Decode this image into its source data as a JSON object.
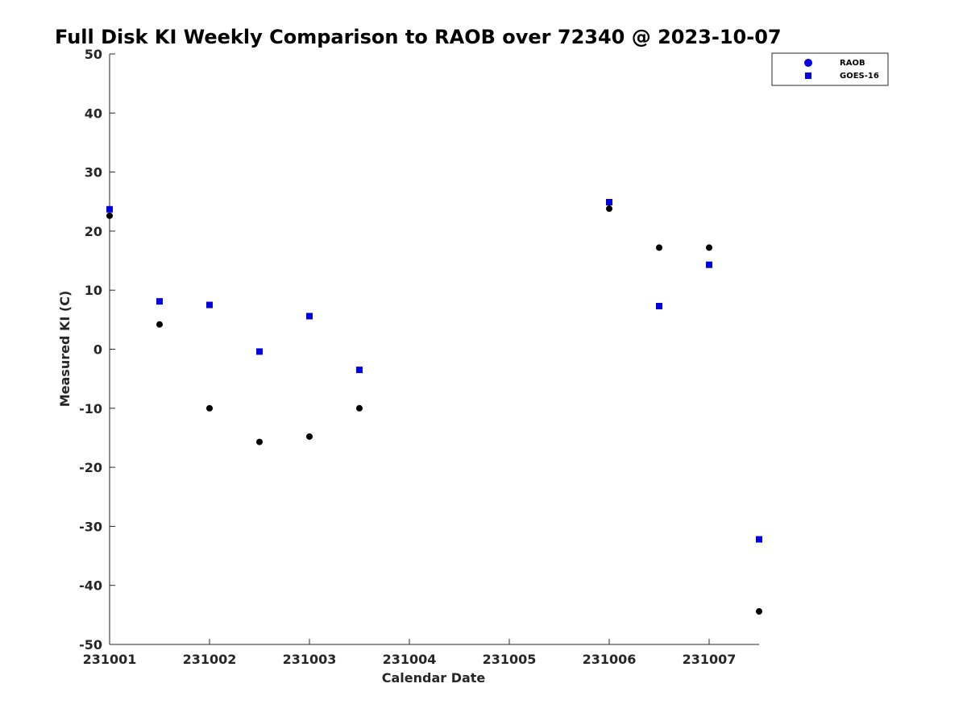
{
  "chart_data": {
    "type": "scatter",
    "title": "Full Disk KI Weekly Comparison to RAOB over 72340 @ 2023-10-07",
    "xlabel": "Calendar Date",
    "ylabel": "Measured KI (C)",
    "x_ticks": [
      "231001",
      "231002",
      "231003",
      "231004",
      "231005",
      "231006",
      "231007"
    ],
    "xlim": [
      "2023-10-01 00:00",
      "2023-10-07 12:00"
    ],
    "ylim": [
      -50,
      50
    ],
    "y_ticks": [
      -50,
      -40,
      -30,
      -20,
      -10,
      0,
      10,
      20,
      30,
      40,
      50
    ],
    "grid": false,
    "legend_position": "top-right",
    "series": [
      {
        "name": "RAOB",
        "marker": "circle",
        "color": "#000000",
        "points": [
          {
            "x": "2023-10-01 00:00",
            "y": 22.6
          },
          {
            "x": "2023-10-01 12:00",
            "y": 4.2
          },
          {
            "x": "2023-10-02 00:00",
            "y": -10.0
          },
          {
            "x": "2023-10-02 12:00",
            "y": -15.7
          },
          {
            "x": "2023-10-03 00:00",
            "y": -14.8
          },
          {
            "x": "2023-10-03 12:00",
            "y": -10.0
          },
          {
            "x": "2023-10-06 00:00",
            "y": 23.8
          },
          {
            "x": "2023-10-06 12:00",
            "y": 17.2
          },
          {
            "x": "2023-10-07 00:00",
            "y": 17.2
          },
          {
            "x": "2023-10-07 12:00",
            "y": -44.4
          }
        ]
      },
      {
        "name": "GOES-16",
        "marker": "square",
        "color": "#0000e0",
        "points": [
          {
            "x": "2023-10-01 00:00",
            "y": 23.7
          },
          {
            "x": "2023-10-01 12:00",
            "y": 8.1
          },
          {
            "x": "2023-10-02 00:00",
            "y": 7.5
          },
          {
            "x": "2023-10-02 12:00",
            "y": -0.4
          },
          {
            "x": "2023-10-03 00:00",
            "y": 5.6
          },
          {
            "x": "2023-10-03 12:00",
            "y": -3.5
          },
          {
            "x": "2023-10-06 00:00",
            "y": 24.9
          },
          {
            "x": "2023-10-06 12:00",
            "y": 7.3
          },
          {
            "x": "2023-10-07 00:00",
            "y": 14.3
          },
          {
            "x": "2023-10-07 12:00",
            "y": -32.2
          }
        ]
      }
    ]
  }
}
